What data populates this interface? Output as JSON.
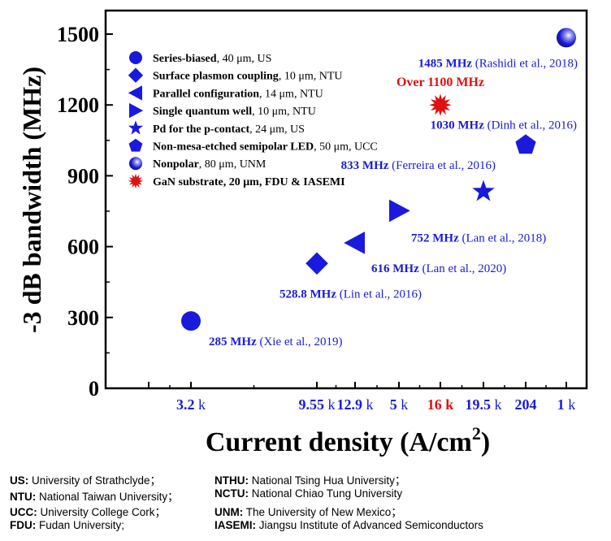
{
  "chart_data": {
    "type": "scatter",
    "ylabel": "-3 dB bandwidth (MHz)",
    "xlabel_main": "Current density (A/cm",
    "xlabel_sup": "2",
    "xlabel_close": ")",
    "ylim": [
      0,
      1550
    ],
    "yticks": [
      "0",
      "300",
      "600",
      "900",
      "1200",
      "1500"
    ],
    "grid": false,
    "legend_position": "top-left",
    "categories": [
      {
        "num": "3.2",
        "unit": "k",
        "color": "#1a1adc"
      },
      {
        "num": "9.55",
        "unit": "k",
        "color": "#1a1adc"
      },
      {
        "num": "12.9",
        "unit": "k",
        "color": "#1a1adc"
      },
      {
        "num": "5",
        "unit": "k",
        "color": "#1a1adc"
      },
      {
        "num": "16",
        "unit": "k",
        "color": "#e01010"
      },
      {
        "num": "19.5",
        "unit": "k",
        "color": "#1a1adc"
      },
      {
        "num": "204",
        "unit": "",
        "color": "#1a1adc"
      },
      {
        "num": "1",
        "unit": "k",
        "color": "#1a1adc"
      }
    ],
    "points": [
      {
        "category": "3.2 k",
        "y": 285,
        "marker": "circle",
        "color": "#1a1adc",
        "value_label": "285 MHz",
        "ref": " (Xie et al., 2019)"
      },
      {
        "category": "9.55 k",
        "y": 528.8,
        "marker": "diamond",
        "color": "#1a1adc",
        "value_label": "528.8 MHz",
        "ref": " (Lin et al., 2016)"
      },
      {
        "category": "12.9 k",
        "y": 616,
        "marker": "triangle-left",
        "color": "#1a1adc",
        "value_label": "616 MHz",
        "ref": " (Lan et al., 2020)"
      },
      {
        "category": "5 k",
        "y": 752,
        "marker": "triangle-right",
        "color": "#1a1adc",
        "value_label": "752 MHz",
        "ref": " (Lan et al., 2018)"
      },
      {
        "category": "16 k",
        "y": 1200,
        "marker": "burst",
        "color": "#e01010",
        "value_label": "Over 1100 MHz",
        "ref": ""
      },
      {
        "category": "19.5 k",
        "y": 833,
        "marker": "star",
        "color": "#1a1adc",
        "value_label": "833 MHz",
        "ref": " (Ferreira et al., 2016)"
      },
      {
        "category": "204",
        "y": 1030,
        "marker": "pentagon",
        "color": "#1a1adc",
        "value_label": "1030 MHz",
        "ref": " (Dinh et al., 2016)"
      },
      {
        "category": "1 k",
        "y": 1485,
        "marker": "sphere",
        "color": "#1a1adc",
        "value_label": "1485 MHz",
        "ref": " (Rashidi et al., 2018)"
      }
    ],
    "legend": [
      {
        "marker": "circle",
        "color": "#1a1adc",
        "bold": "Series-biased",
        "rest": ", 40 μm, US"
      },
      {
        "marker": "diamond",
        "color": "#1a1adc",
        "bold": "Surface plasmon coupling",
        "rest": ", 10 μm, NTU"
      },
      {
        "marker": "triangle-left",
        "color": "#1a1adc",
        "bold": "Parallel configuration",
        "rest": ", 14 μm, NTU"
      },
      {
        "marker": "triangle-right",
        "color": "#1a1adc",
        "bold": "Single quantum well",
        "rest": ", 10 μm, NTU"
      },
      {
        "marker": "star",
        "color": "#1a1adc",
        "bold": "Pd for the p-contact",
        "rest": ", 24 μm, US"
      },
      {
        "marker": "pentagon",
        "color": "#1a1adc",
        "bold": "Non-mesa-etched semipolar LED",
        "rest": ", 50 μm, UCC"
      },
      {
        "marker": "sphere",
        "color": "#1a1adc",
        "bold": "Nonpolar",
        "rest": ", 80 μm, UNM"
      },
      {
        "marker": "burst",
        "color": "#e01010",
        "bold": "GaN substrate, 20 μm, FDU & IASEMI",
        "rest": ""
      }
    ]
  },
  "footnotes": [
    [
      {
        "abbr": "US",
        "sep": ":",
        "text": "  University of Strathclyde；"
      },
      {
        "abbr": "NTHU",
        "sep": ":",
        "text": "  National Tsing Hua University；"
      }
    ],
    [
      {
        "abbr": "NTU",
        "sep": ":",
        "text": "  National Taiwan University；"
      },
      {
        "abbr": "NCTU",
        "sep": ":",
        "text": "  National Chiao Tung University"
      }
    ],
    [
      {
        "abbr": "UCC",
        "sep": ":",
        "text": "  University College Cork；"
      },
      {
        "abbr": "UNM",
        "sep": ":",
        "text": "  The University of New Mexico；"
      }
    ],
    [
      {
        "abbr": "FDU",
        "sep": ":",
        "text": "  Fudan University;"
      },
      {
        "abbr": "IASEMI",
        "sep": ":",
        "text": " Jiangsu Institute of Advanced Semiconductors"
      }
    ]
  ]
}
